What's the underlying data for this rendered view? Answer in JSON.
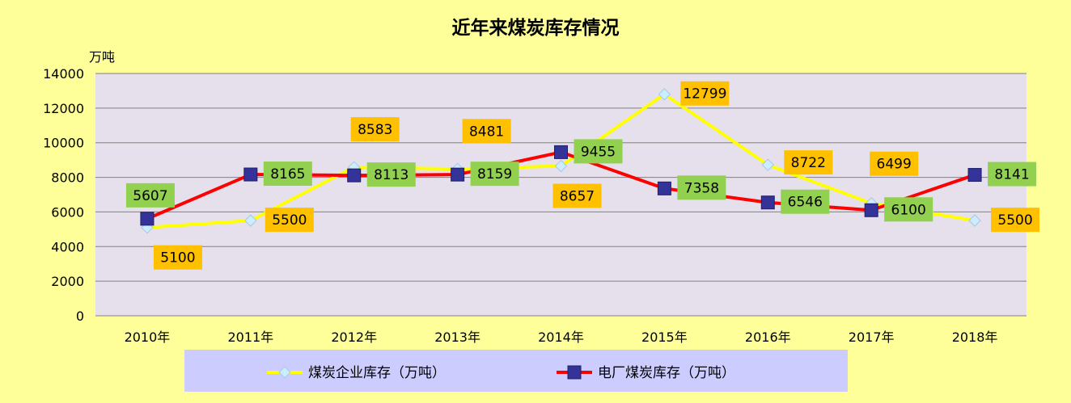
{
  "chart_data": {
    "type": "line",
    "title": "近年来煤炭库存情况",
    "unit_label": "万吨",
    "categories": [
      "2010年",
      "2011年",
      "2012年",
      "2013年",
      "2014年",
      "2015年",
      "2016年",
      "2017年",
      "2018年"
    ],
    "ylim": [
      0,
      14000
    ],
    "yticks": [
      0,
      2000,
      4000,
      6000,
      8000,
      10000,
      12000,
      14000
    ],
    "grid": true,
    "legend_position": "bottom",
    "series": [
      {
        "name": "煤炭企业库存（万吨）",
        "values": [
          5100,
          5500,
          8583,
          8481,
          8657,
          12799,
          8722,
          6499,
          5500
        ],
        "line_color": "#FFFF00",
        "marker": "diamond",
        "marker_color": "#CCECFF",
        "label_bg": "#FFC000"
      },
      {
        "name": "电厂煤炭库存（万吨）",
        "values": [
          5607,
          8165,
          8113,
          8159,
          9455,
          7358,
          6546,
          6100,
          8141
        ],
        "line_color": "#FF0000",
        "marker": "square",
        "marker_color": "#333399",
        "label_bg": "#92D050"
      }
    ]
  },
  "colors": {
    "page_background": "#FFFF99",
    "plot_background": "#E6E0EC",
    "legend_background": "#CCCCFF",
    "gridline": "#808080"
  }
}
